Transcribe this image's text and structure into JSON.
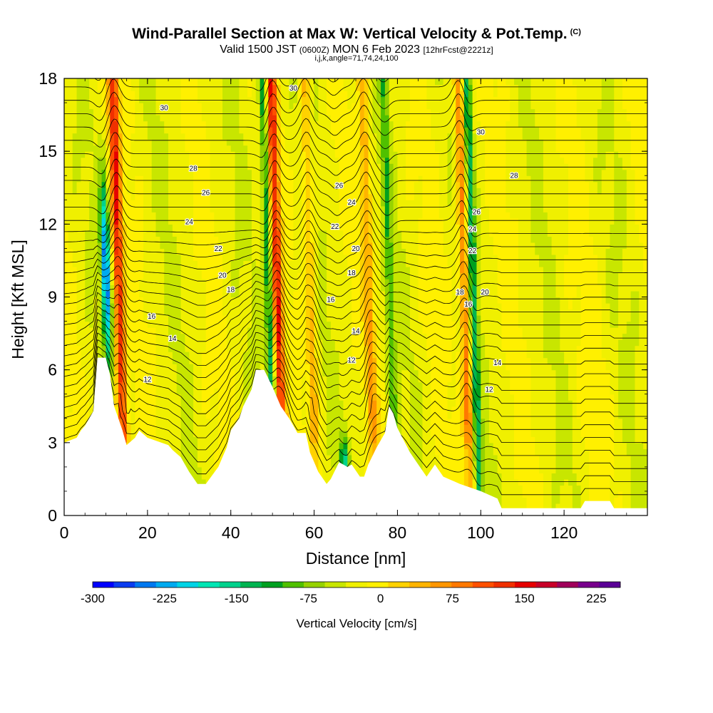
{
  "title": {
    "main": "Wind-Parallel Section at Max W: Vertical Velocity & Pot.Temp.",
    "copyright": "(C)",
    "valid_a": "Valid 1500 JST",
    "valid_utc": "(0600Z)",
    "valid_b": "MON 6 Feb 2023",
    "forecast": "[12hrFcst@2221z]",
    "params": "i,j,k,angle=71,74,24,100"
  },
  "chart_data": {
    "type": "heatmap",
    "xlabel": "Distance [nm]",
    "ylabel": "Height [Kft MSL]",
    "xlim": [
      0,
      140
    ],
    "ylim": [
      0,
      18
    ],
    "xticks": [
      "0",
      "20",
      "40",
      "60",
      "80",
      "100",
      "120"
    ],
    "yticks": [
      "0",
      "3",
      "6",
      "9",
      "12",
      "15",
      "18"
    ],
    "colorbar": {
      "label": "Vertical Velocity [cm/s]",
      "min": -300,
      "max": 250,
      "step": 25,
      "tick_labels": [
        "-300",
        "-225",
        "-150",
        "-75",
        "0",
        "75",
        "150",
        "225"
      ],
      "colors": [
        "#0000ff",
        "#0a3cf0",
        "#0078f0",
        "#00aaf0",
        "#00d4e6",
        "#00e6b4",
        "#00d28c",
        "#00b450",
        "#00a020",
        "#50c000",
        "#96d200",
        "#c8e600",
        "#f0f000",
        "#fff000",
        "#ffd200",
        "#ffb400",
        "#ff9600",
        "#ff7800",
        "#ff5000",
        "#f03000",
        "#e60000",
        "#c80028",
        "#a0005a",
        "#78008c",
        "#5a0096"
      ]
    },
    "updraft_cores": [
      {
        "x": 13,
        "peak_cm_s": 175
      },
      {
        "x": 51,
        "peak_cm_s": 175
      },
      {
        "x": 59,
        "peak_cm_s": 75
      },
      {
        "x": 73,
        "peak_cm_s": 75
      },
      {
        "x": 96,
        "peak_cm_s": 125
      }
    ],
    "downdraft_cores": [
      {
        "x": 10,
        "peak_cm_s": -275
      },
      {
        "x": 66,
        "peak_cm_s": -150
      },
      {
        "x": 98,
        "peak_cm_s": -125
      },
      {
        "x": 78,
        "peak_cm_s": -75
      },
      {
        "x": 49,
        "peak_cm_s": -125
      }
    ],
    "terrain_kft": [
      [
        0,
        3.0
      ],
      [
        3,
        3.2
      ],
      [
        4,
        3.5
      ],
      [
        5,
        3.7
      ],
      [
        6,
        4.0
      ],
      [
        7,
        4.3
      ],
      [
        8,
        6.5
      ],
      [
        10,
        6.5
      ],
      [
        11,
        5.8
      ],
      [
        12,
        4.5
      ],
      [
        13,
        4.0
      ],
      [
        14,
        3.5
      ],
      [
        15,
        2.9
      ],
      [
        17,
        3.2
      ],
      [
        18,
        3.5
      ],
      [
        20,
        3.2
      ],
      [
        25,
        2.9
      ],
      [
        26,
        2.7
      ],
      [
        28,
        2.4
      ],
      [
        30,
        1.8
      ],
      [
        32,
        1.3
      ],
      [
        34,
        1.3
      ],
      [
        37,
        2.0
      ],
      [
        39,
        2.8
      ],
      [
        40,
        3.5
      ],
      [
        42,
        4.0
      ],
      [
        43,
        4.5
      ],
      [
        45,
        5.2
      ],
      [
        46,
        6.0
      ],
      [
        48,
        6.0
      ],
      [
        50,
        5.3
      ],
      [
        52,
        4.5
      ],
      [
        54,
        4.0
      ],
      [
        55,
        3.7
      ],
      [
        56,
        3.4
      ],
      [
        58,
        3.4
      ],
      [
        59,
        2.6
      ],
      [
        60,
        2.2
      ],
      [
        61,
        1.8
      ],
      [
        63,
        1.3
      ],
      [
        64,
        1.5
      ],
      [
        66,
        2.2
      ],
      [
        68,
        2.0
      ],
      [
        69,
        2.1
      ],
      [
        71,
        1.6
      ],
      [
        72,
        1.6
      ],
      [
        73,
        2.1
      ],
      [
        75,
        2.8
      ],
      [
        77,
        3.4
      ],
      [
        78,
        4.5
      ],
      [
        79,
        4.2
      ],
      [
        80,
        3.6
      ],
      [
        83,
        2.6
      ],
      [
        85,
        2.1
      ],
      [
        87,
        1.6
      ],
      [
        89,
        2.1
      ],
      [
        91,
        1.6
      ],
      [
        95,
        1.3
      ],
      [
        100,
        1.0
      ],
      [
        104,
        0.7
      ],
      [
        105,
        0.3
      ],
      [
        110,
        0.3
      ],
      [
        120,
        0.3
      ],
      [
        124,
        0.3
      ],
      [
        125,
        0.6
      ],
      [
        131,
        0.6
      ],
      [
        132,
        0.3
      ],
      [
        140,
        0.3
      ]
    ],
    "isentrope_labels": [
      "12",
      "14",
      "16",
      "18",
      "20",
      "22",
      "24",
      "26",
      "28",
      "30"
    ]
  },
  "colors": {
    "background": "#ffffff",
    "terrain": "#ffffff",
    "contour": "#000000"
  }
}
